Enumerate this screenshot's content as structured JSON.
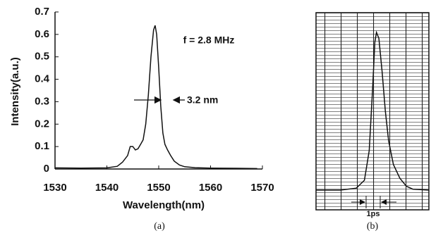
{
  "chart_data": [
    {
      "type": "line",
      "xlabel": "Wavelength(nm)",
      "ylabel": "Intensity(a.u.)",
      "annotations": [
        "f = 2.8 MHz",
        "3.2 nm"
      ],
      "caption": "(a)",
      "color": "#111111",
      "x": [
        1530,
        1535,
        1540,
        1542,
        1543,
        1544,
        1544.5,
        1545,
        1545.5,
        1546,
        1546.5,
        1547,
        1547.5,
        1548,
        1548.5,
        1549,
        1549.3,
        1549.6,
        1550,
        1550.4,
        1550.8,
        1551.2,
        1551.7,
        1552.3,
        1553,
        1554,
        1555,
        1557,
        1560,
        1565,
        1569
      ],
      "values": [
        0.005,
        0.004,
        0.005,
        0.012,
        0.03,
        0.06,
        0.1,
        0.1,
        0.085,
        0.09,
        0.11,
        0.13,
        0.2,
        0.33,
        0.5,
        0.62,
        0.64,
        0.6,
        0.45,
        0.28,
        0.16,
        0.11,
        0.085,
        0.06,
        0.035,
        0.018,
        0.01,
        0.006,
        0.004,
        0.003,
        0.002
      ],
      "xlim": [
        1530,
        1570
      ],
      "ylim": [
        0,
        0.7
      ],
      "xticks": [
        1530,
        1540,
        1550,
        1560,
        1570
      ],
      "yticks": [
        0,
        0.1,
        0.2,
        0.3,
        0.4,
        0.5,
        0.6,
        0.7
      ]
    },
    {
      "type": "line",
      "annotations": [
        "1ps"
      ],
      "caption": "(b)",
      "color": "#111111",
      "x": [
        0,
        1.5,
        2.5,
        3.0,
        3.3,
        3.5,
        3.65,
        3.75,
        3.9,
        4.1,
        4.3,
        4.5,
        4.8,
        5.2,
        5.6,
        6.0,
        7.0
      ],
      "values": [
        1.0,
        1.0,
        1.1,
        1.5,
        3.0,
        6.0,
        8.5,
        9.0,
        8.7,
        7.0,
        5.0,
        3.5,
        2.3,
        1.6,
        1.2,
        1.05,
        1.0
      ],
      "xlim": [
        0,
        7
      ],
      "ylim": [
        0,
        10
      ]
    }
  ]
}
